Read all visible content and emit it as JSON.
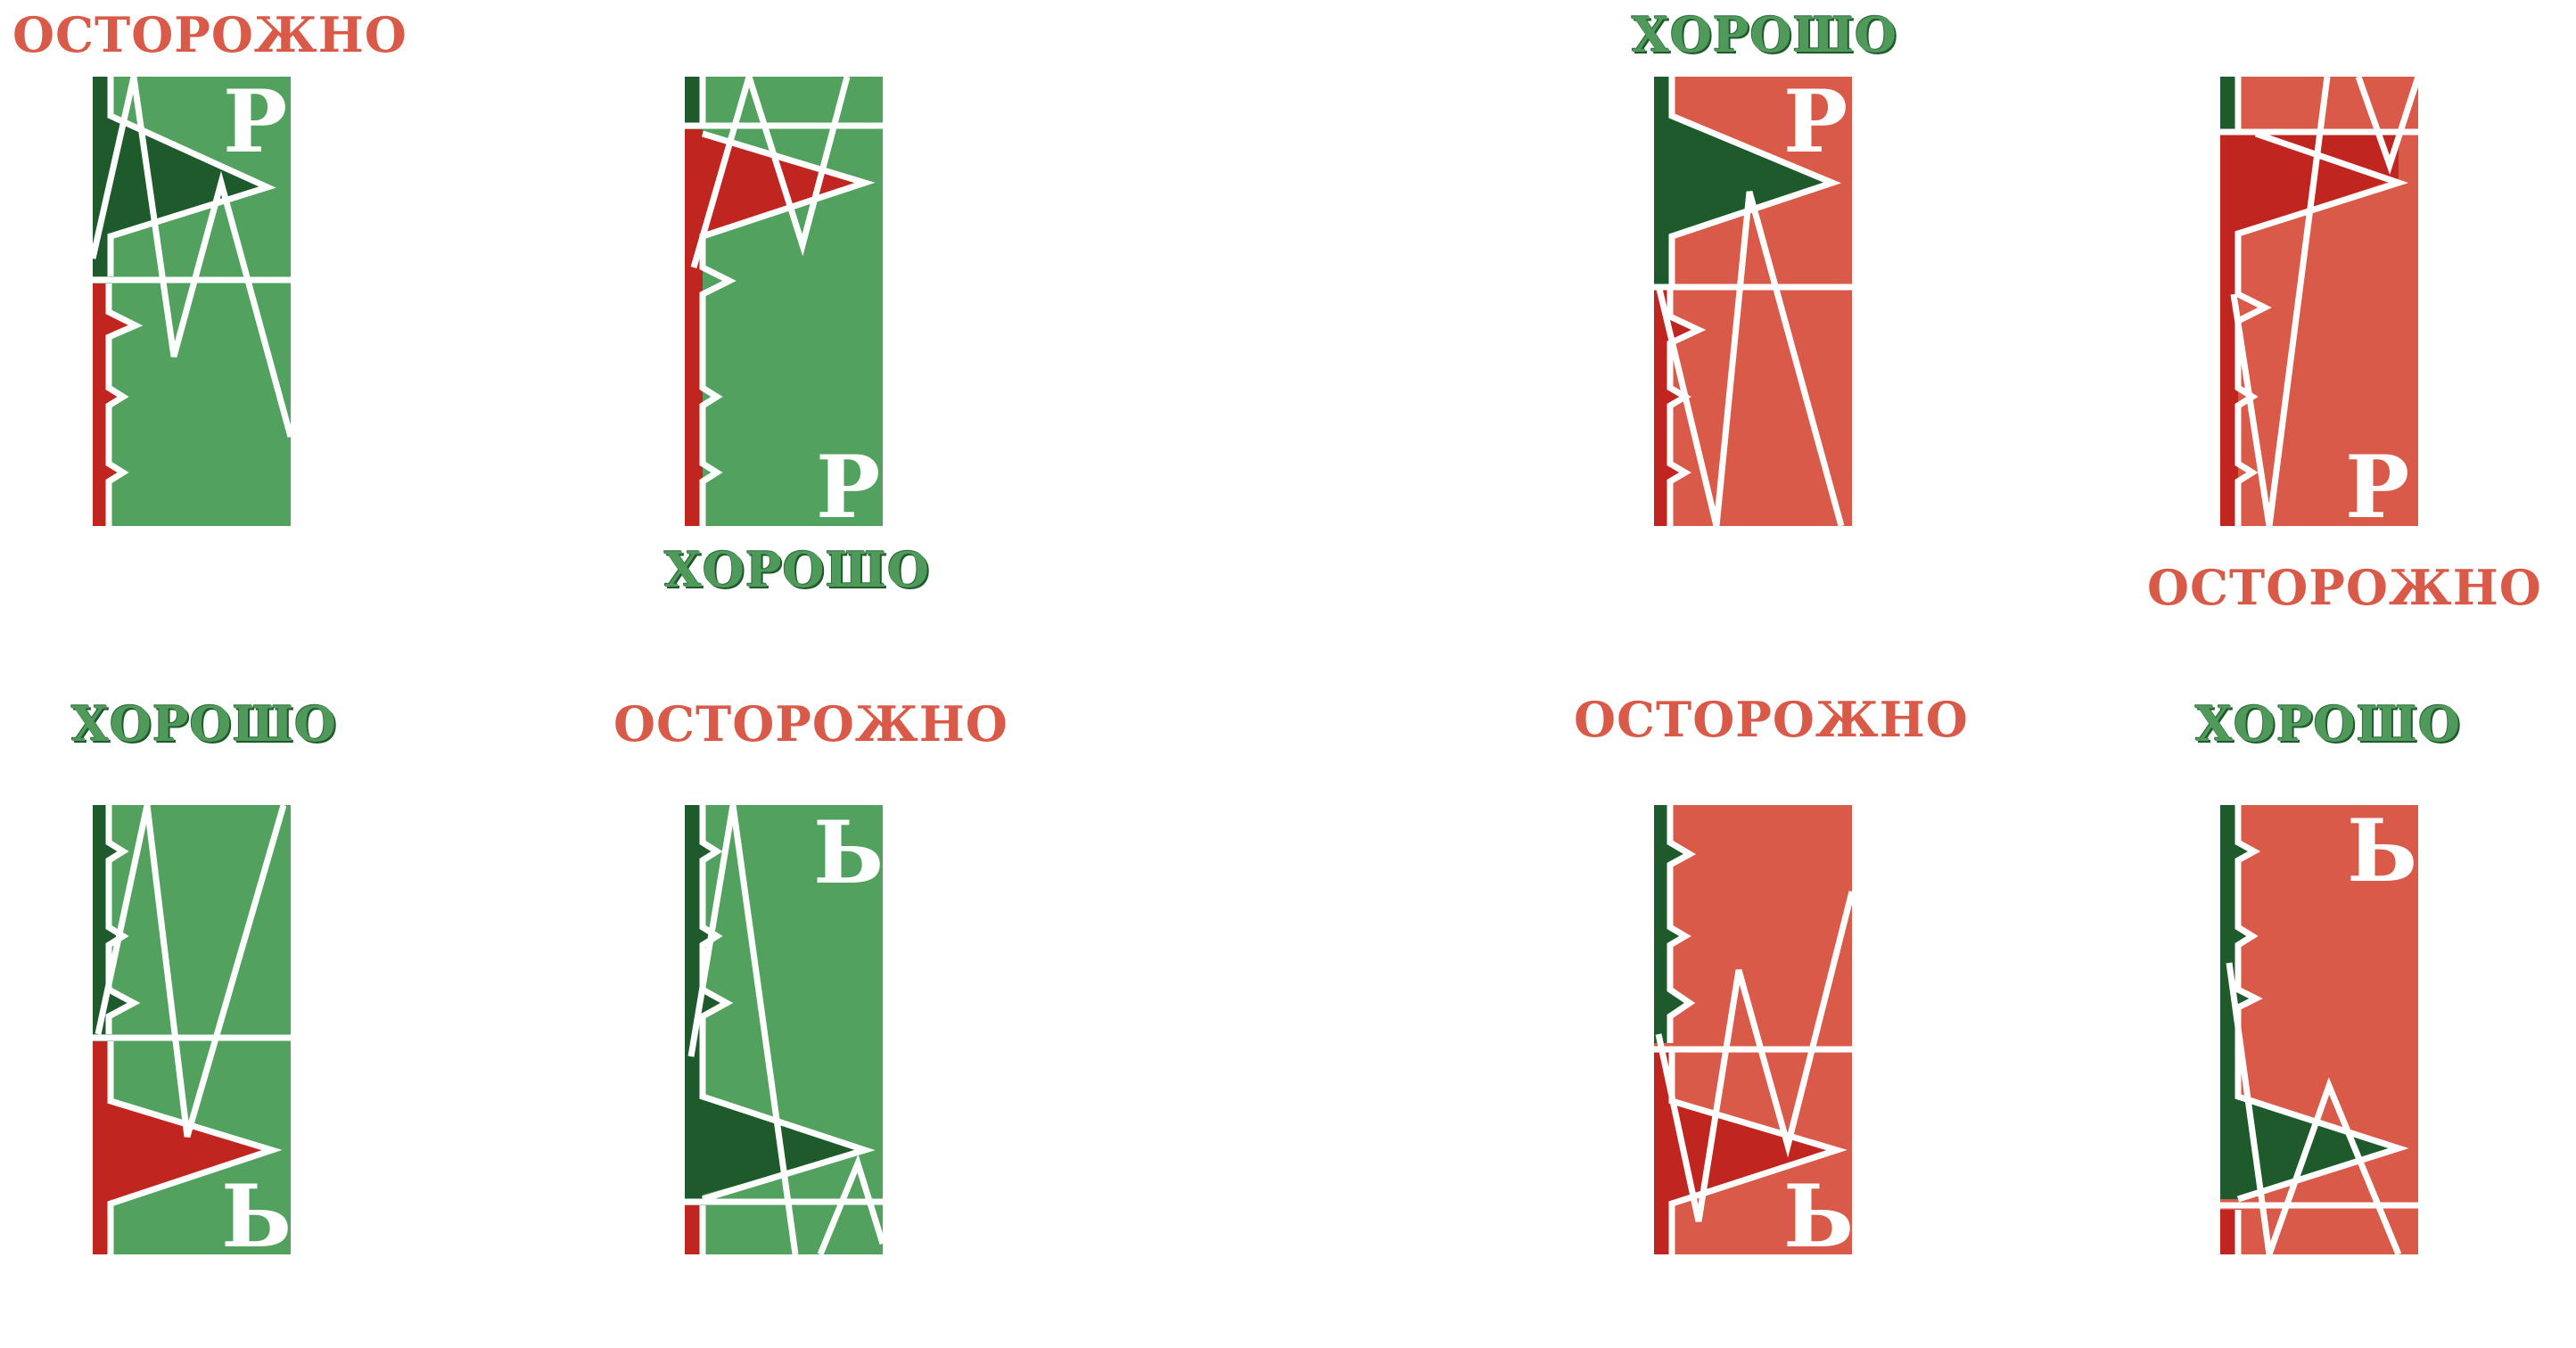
{
  "colors": {
    "green": "#52a15e",
    "dark_green": "#1e5a2b",
    "red": "#d95a48",
    "dark_red": "#c0251f",
    "good_text": "#4f9a5b",
    "warn_text": "#d95a48"
  },
  "labels": {
    "warn": "ОСТОРОЖНО",
    "good": "ХОРОШО"
  },
  "letters": {
    "p": "Р",
    "soft": "Ь"
  }
}
